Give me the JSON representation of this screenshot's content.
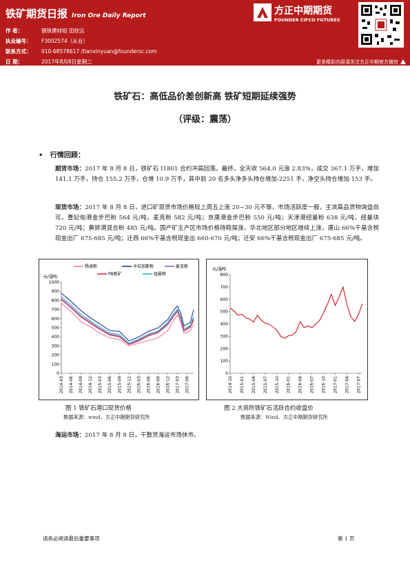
{
  "header": {
    "title_cn": "铁矿期货日报",
    "title_en": "Iron Ore Daily Report",
    "meta": [
      {
        "label": "作    者：",
        "value": "钢铁建材组 田欣沅"
      },
      {
        "label": "执业编号：",
        "value": "F3002574（从业）"
      },
      {
        "label": "联系方式：",
        "value": "010-68578617 /tianxinyuan@foundersc.com"
      },
      {
        "label": "日    期：",
        "value": "2017年8月8日星期二"
      }
    ],
    "logo_cn": "方正中期期货",
    "logo_en": "FOUNDER CIFCO FUTURES",
    "more_text": "更多精彩内容请关注方正中期官方微信"
  },
  "title": "铁矿石：高低品价差创新高 铁矿短期延续强势",
  "rating": "（评级：震荡）",
  "section_label": "行情回顾：",
  "paragraphs": {
    "futures": {
      "label": "期货市场：",
      "text": "2017 年 8 月 8 日，铁矿石 I1801 合约冲高回落。最终，全天收 564.0 元涨 2.83%，成交 367.1 万手，增加 141.1 万手，持仓 155.2 万手，仓增 10.9 万手，其中前 20 名多头净多头持仓增加-2251 手，净空头持仓增加-153 手。"
    },
    "spot": {
      "label": "现货市场：",
      "text": "2017 年 8 月 8 日，进口矿现货市场价格较上周五上涨 20~30 元不等，市场活跃度一般，主流高品货物询盘尚可。曹妃甸港金步巴粉 564 元/吨，麦克粉 582 元/吨；京唐港金步巴粉 550 元/吨；天津港纽曼粉 638 元/吨，纽曼块 720 元/吨；黄骅港混合粉 485 元/吨。国产矿主产区市场价格持稳探涨，华北地区部分地区继续上涨，唐山 66%干基含税现金出厂 675-685 元/吨；迁西 66%干基含税现金出 660-670 元/吨；迁安 66%干基含税现金出厂 675-685 元/吨。"
    },
    "shipping": {
      "label": "海运市场：",
      "text": "2017 年 8 月 8 日，干散货海运市场休市。"
    }
  },
  "figure1": {
    "caption": "图 1 铁矿石港口现货价格",
    "source": "数据来源：wind、方正中期期货研究所"
  },
  "figure2": {
    "caption": "图 2 大商所铁矿石活跃合约收盘价",
    "source": "数据来源：Wind、方正中期期货研究所"
  },
  "footer": {
    "disclaimer": "请务必阅读最后重要事项",
    "page": "第 1 页"
  },
  "chart_data": [
    {
      "type": "line",
      "unit_label": "元/湿吨",
      "ylim": [
        0,
        1000
      ],
      "yticks": [
        "0",
        "100",
        "200",
        "300",
        "400",
        "500",
        "600",
        "700",
        "800",
        "900",
        "1000"
      ],
      "x_ticks": [
        "2014-03",
        "2014-06",
        "2014-09",
        "2014-12",
        "2015-03",
        "2015-06",
        "2015-09",
        "2015-12",
        "2016-03",
        "2016-06",
        "2016-09",
        "2016-12",
        "2017-03",
        "2017-06"
      ],
      "x": [
        "2014-03",
        "2014-06",
        "2014-09",
        "2014-12",
        "2015-03",
        "2015-06",
        "2015-09",
        "2015-12",
        "2016-03",
        "2016-06",
        "2016-09",
        "2016-12",
        "2017-02",
        "2017-03",
        "2017-04",
        "2017-05",
        "2017-06",
        "2017-07",
        "2017-08"
      ],
      "series": [
        {
          "name": "杨迪粉",
          "color": "#e87ea1",
          "values": [
            770,
            680,
            570,
            510,
            440,
            390,
            370,
            300,
            330,
            360,
            390,
            470,
            590,
            640,
            560,
            440,
            450,
            470,
            540
          ]
        },
        {
          "name": "卡拉加斯粉",
          "color": "#1f3d7a",
          "values": [
            880,
            790,
            690,
            610,
            540,
            470,
            460,
            355,
            400,
            460,
            500,
            590,
            700,
            740,
            660,
            520,
            540,
            560,
            700
          ]
        },
        {
          "name": "麦克粉",
          "color": "#8c5fb0",
          "values": [
            820,
            730,
            630,
            560,
            490,
            430,
            410,
            320,
            365,
            420,
            455,
            545,
            645,
            690,
            600,
            475,
            495,
            515,
            600
          ]
        },
        {
          "name": "PB粉矿",
          "color": "#d6313b",
          "values": [
            810,
            720,
            620,
            550,
            480,
            420,
            400,
            315,
            355,
            410,
            445,
            535,
            635,
            680,
            590,
            465,
            485,
            505,
            585
          ]
        },
        {
          "name": "纽曼粉",
          "color": "#33a7d6",
          "values": [
            840,
            750,
            650,
            575,
            505,
            445,
            425,
            330,
            375,
            430,
            465,
            560,
            660,
            705,
            615,
            490,
            505,
            525,
            620
          ]
        }
      ],
      "grid": false,
      "legend": "top"
    },
    {
      "type": "line",
      "unit_label": "元/湿吨",
      "ylim": [
        0,
        800
      ],
      "yticks": [
        "0",
        "100",
        "200",
        "300",
        "400",
        "500",
        "600",
        "700",
        "800"
      ],
      "x_ticks": [
        "2014-10",
        "2015-01",
        "2015-04",
        "2015-07",
        "2015-10",
        "2016-01",
        "2016-04",
        "2016-07",
        "2016-10",
        "2017-01",
        "2017-04",
        "2017-07"
      ],
      "x": [
        "2014-10",
        "2014-11",
        "2014-12",
        "2015-01",
        "2015-02",
        "2015-03",
        "2015-04",
        "2015-05",
        "2015-06",
        "2015-07",
        "2015-08",
        "2015-09",
        "2015-10",
        "2015-11",
        "2015-12",
        "2016-01",
        "2016-02",
        "2016-03",
        "2016-04",
        "2016-05",
        "2016-06",
        "2016-07",
        "2016-08",
        "2016-09",
        "2016-10",
        "2016-11",
        "2016-12",
        "2017-01",
        "2017-02",
        "2017-03",
        "2017-04",
        "2017-05",
        "2017-06",
        "2017-07",
        "2017-08"
      ],
      "series": [
        {
          "name": "",
          "color": "#c9161d",
          "values": [
            530,
            505,
            470,
            480,
            450,
            440,
            415,
            470,
            430,
            405,
            400,
            375,
            350,
            300,
            285,
            305,
            310,
            340,
            420,
            370,
            385,
            370,
            400,
            430,
            490,
            560,
            640,
            550,
            620,
            700,
            560,
            460,
            420,
            480,
            564
          ]
        }
      ],
      "grid": false,
      "legend": "none"
    }
  ]
}
